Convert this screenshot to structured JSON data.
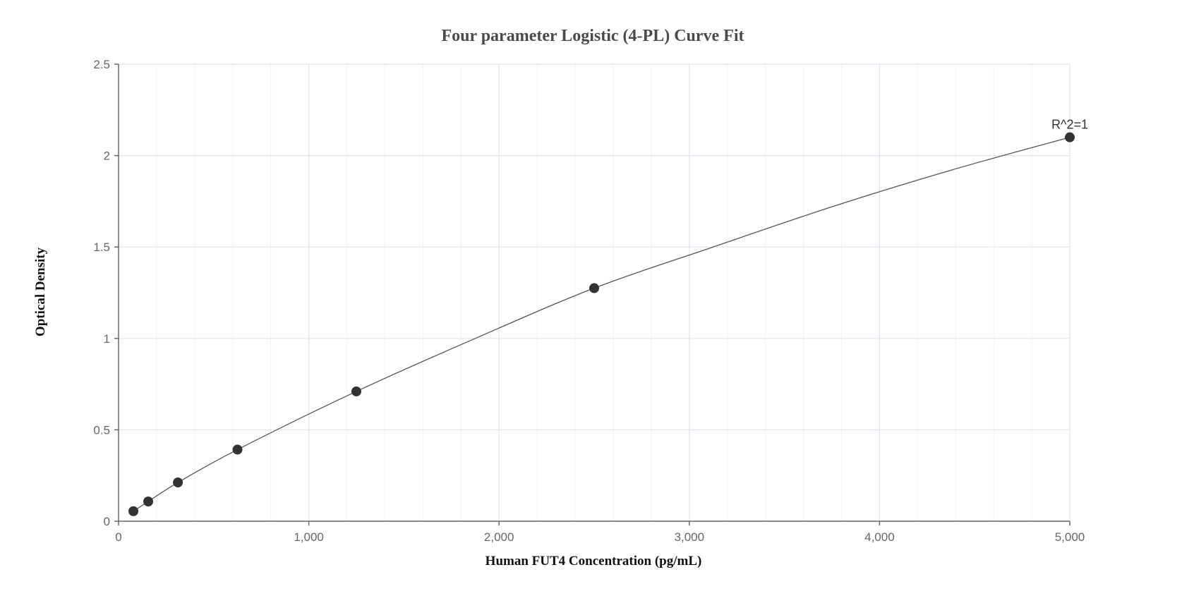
{
  "chart_data": {
    "type": "scatter",
    "title": "Four parameter Logistic (4-PL) Curve Fit",
    "xlabel": "Human FUT4 Concentration (pg/mL)",
    "ylabel": "Optical Density",
    "xlim": [
      0,
      5000
    ],
    "ylim": [
      0,
      2.5
    ],
    "x_ticks": [
      0,
      1000,
      2000,
      3000,
      4000,
      5000
    ],
    "x_tick_labels": [
      "0",
      "1,000",
      "2,000",
      "3,000",
      "4,000",
      "5,000"
    ],
    "y_ticks": [
      0,
      0.5,
      1,
      1.5,
      2,
      2.5
    ],
    "y_tick_labels": [
      "0",
      "0.5",
      "1",
      "1.5",
      "2",
      "2.5"
    ],
    "grid": true,
    "series": [
      {
        "type": "scatter",
        "x": [
          78,
          156,
          312,
          625,
          1250,
          2500,
          5000
        ],
        "y": [
          0.055,
          0.108,
          0.212,
          0.392,
          0.71,
          1.275,
          2.1
        ]
      },
      {
        "type": "line",
        "fit": "4PL",
        "x": [
          78,
          156,
          312,
          625,
          1250,
          1875,
          2500,
          3125,
          3750,
          4375,
          5000
        ],
        "y": [
          0.055,
          0.108,
          0.212,
          0.392,
          0.71,
          1.0,
          1.275,
          1.5,
          1.72,
          1.92,
          2.1
        ]
      }
    ],
    "annotations": [
      {
        "text": "R^2=1",
        "x": 5000,
        "y": 2.1
      }
    ],
    "colors": {
      "marker": "#333333",
      "curve": "#555555",
      "axis": "#666666",
      "grid_major": "#dfe3ee",
      "grid_minor": "#f1f3f8"
    }
  }
}
